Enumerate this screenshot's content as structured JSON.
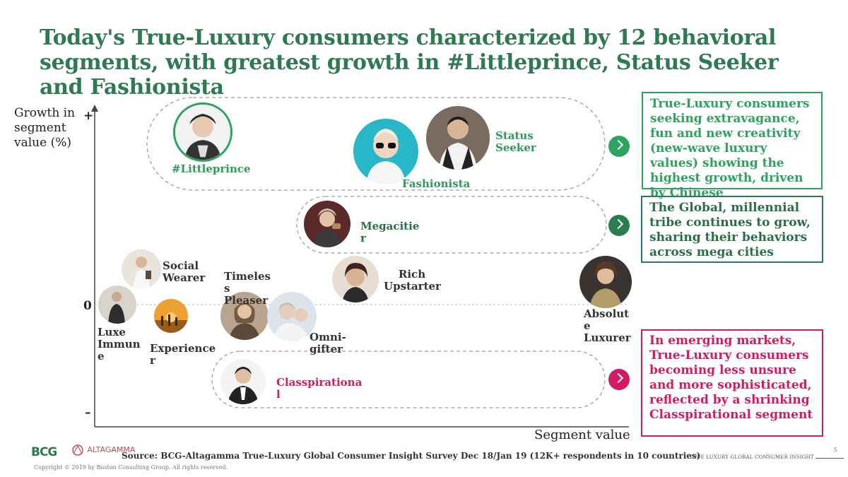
{
  "title": "Today's True-Luxury consumers characterized by 12 behavioral segments, with greatest growth in #Littleprince, Status Seeker and Fashionista",
  "axis": {
    "ylabel": "Growth in segment value (%)",
    "xlabel": "Segment value",
    "plus": "+",
    "zero": "0",
    "minus": "–"
  },
  "segments": {
    "littleprince": "#Littleprince",
    "fashionista": "Fashionista",
    "status_seeker": "Status Seeker",
    "megacities": "Megacitie r",
    "social_wearer": "Social Wearer",
    "luxe_immune": "Luxe Immun e",
    "experiencer": "Experience r",
    "timeless_pleaser": "Timeles s Pleaser",
    "omni_gifter": "Omni-gifter",
    "rich_upstarter": "Rich Upstarter",
    "absolute_luxurer": "Absolut e Luxurer",
    "classpirational": "Classpirationa l"
  },
  "callouts": {
    "top": "True-Luxury consumers seeking extravagance, fun and new creativity (new-wave luxury values) showing the highest growth, driven by Chinese",
    "middle": "The Global, millennial tribe continues to grow, sharing their behaviors across mega cities",
    "bottom": "In emerging markets, True-Luxury consumers becoming less unsure and more sophisticated, reflected by a shrinking Classpirational segment"
  },
  "colors": {
    "title_green": "#2f7a52",
    "accent_green": "#2ea35f",
    "dark_green": "#2a7d4e",
    "pink": "#d21b64"
  },
  "footer": {
    "source": "Source: BCG-Altagamma True-Luxury Global Consumer Insight Survey Dec 18/Jan 19 (12K+ respondents in 10 countries)",
    "copyright": "Copyright © 2019 by Boston Consulting Group. All rights reserved.",
    "right": "TRUE LUXURY GLOBAL CONSUMER INSIGHT",
    "page": "5",
    "logo_bcg": "BCG",
    "logo_altagamma": "ALTAGAMMA"
  }
}
